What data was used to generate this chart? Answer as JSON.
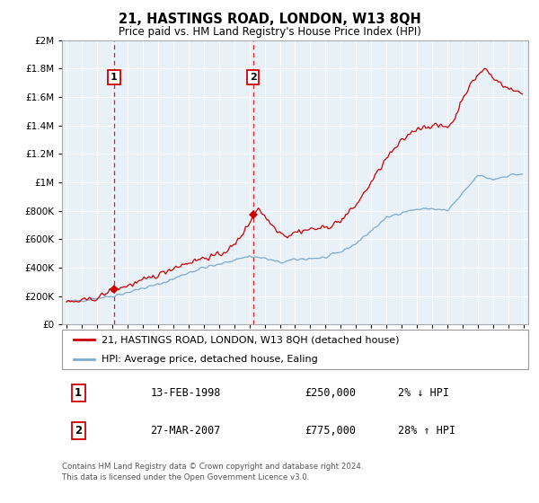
{
  "title": "21, HASTINGS ROAD, LONDON, W13 8QH",
  "subtitle": "Price paid vs. HM Land Registry's House Price Index (HPI)",
  "sale1_date": 1998.12,
  "sale1_price": 250000,
  "sale2_date": 2007.24,
  "sale2_price": 775000,
  "ylim_max": 2000000,
  "xlim_min": 1994.7,
  "xlim_max": 2025.3,
  "hpi_color": "#7eaacc",
  "price_color": "#cc0000",
  "bg_color": "#e8f0f8",
  "grid_color": "#ffffff",
  "annotation_box_color": "#cc0000",
  "legend_entry1": "21, HASTINGS ROAD, LONDON, W13 8QH (detached house)",
  "legend_entry2": "HPI: Average price, detached house, Ealing",
  "footer1": "Contains HM Land Registry data © Crown copyright and database right 2024.",
  "footer2": "This data is licensed under the Open Government Licence v3.0.",
  "table_row1_num": "1",
  "table_row1_date": "13-FEB-1998",
  "table_row1_price": "£250,000",
  "table_row1_hpi": "2% ↓ HPI",
  "table_row2_num": "2",
  "table_row2_date": "27-MAR-2007",
  "table_row2_price": "£775,000",
  "table_row2_hpi": "28% ↑ HPI"
}
